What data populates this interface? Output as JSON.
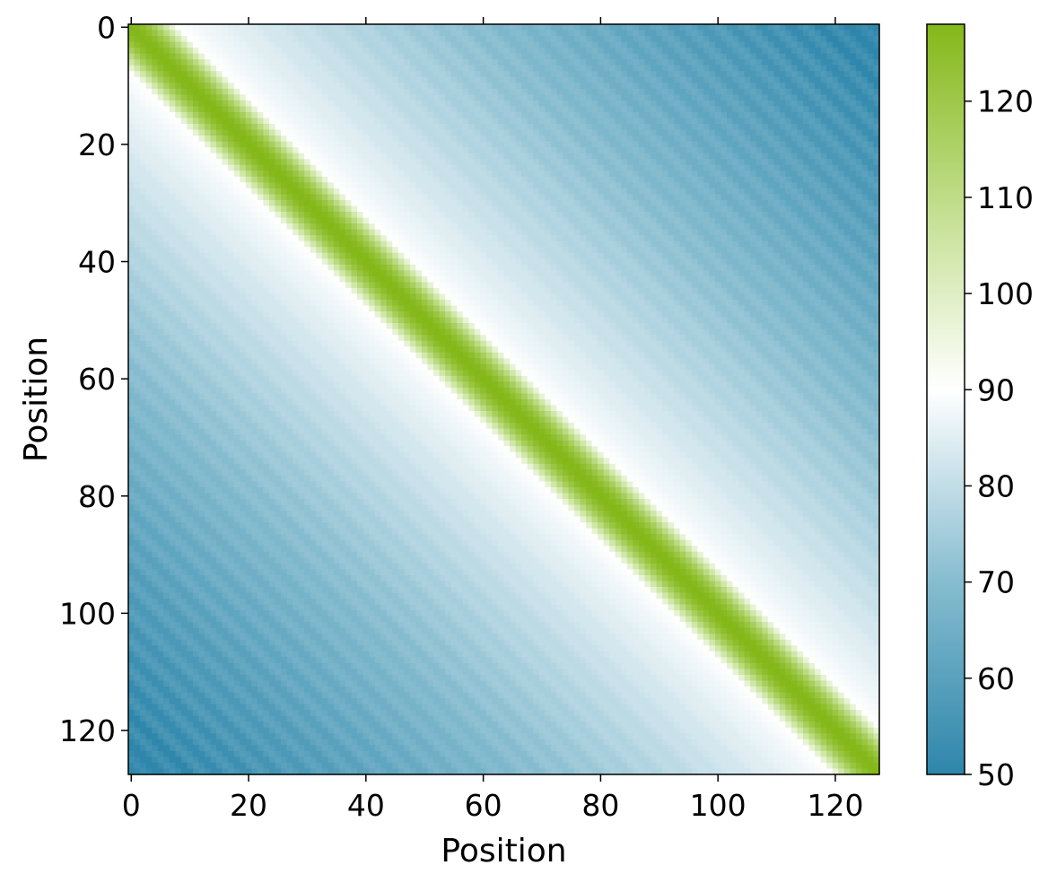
{
  "chart_data": {
    "type": "heatmap",
    "title": "",
    "xlabel": "Position",
    "ylabel": "Position",
    "size": 128,
    "xlim": [
      0,
      127
    ],
    "ylim": [
      0,
      127
    ],
    "y_inverted": true,
    "x_ticks": [
      0,
      20,
      40,
      60,
      80,
      100,
      120
    ],
    "y_ticks": [
      0,
      20,
      40,
      60,
      80,
      100,
      120
    ],
    "colorbar": {
      "vmin": 50,
      "vmax": 128,
      "ticks": [
        50,
        60,
        70,
        80,
        90,
        100,
        110,
        120
      ],
      "colormap_stops": [
        {
          "value": 50,
          "color": "#2e86ab"
        },
        {
          "value": 70,
          "color": "#86bccf"
        },
        {
          "value": 90,
          "color": "#ffffff"
        },
        {
          "value": 105,
          "color": "#cfe6a6"
        },
        {
          "value": 128,
          "color": "#84b819"
        }
      ]
    },
    "pattern": {
      "description_values": "value depends on |row - col|: 128 on diagonal, ~90 at distance 8, decreasing to ~50 at the far corners with periodic ripples",
      "diagonal_value": 128,
      "corner_value": 50
    },
    "grid": false
  }
}
